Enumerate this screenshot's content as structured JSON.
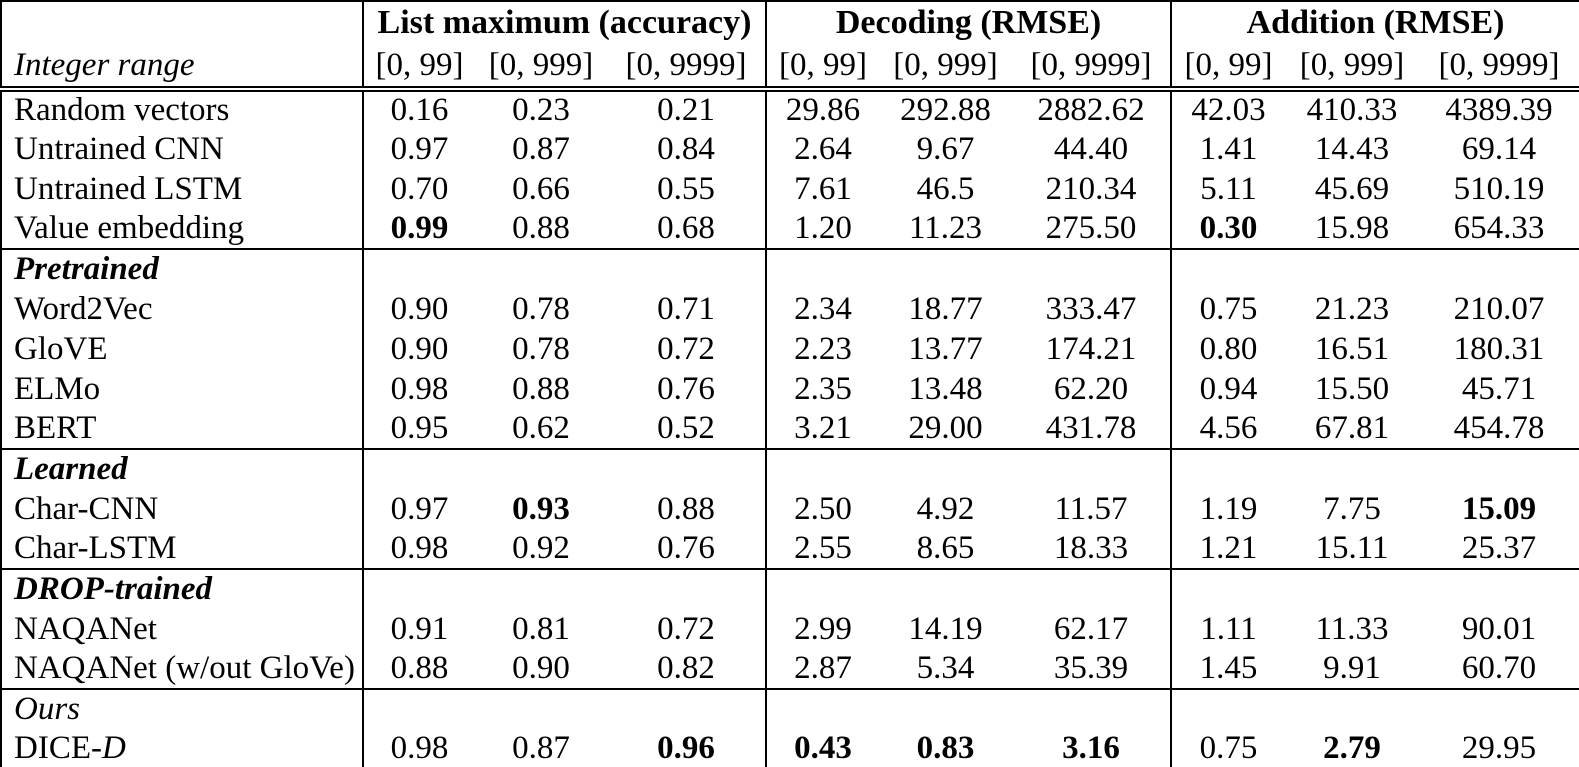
{
  "table": {
    "row_header_label": "Integer range",
    "groups": [
      {
        "title": "List maximum (accuracy)"
      },
      {
        "title": "Decoding (RMSE)"
      },
      {
        "title": "Addition (RMSE)"
      }
    ],
    "ranges": [
      "[0, 99]",
      "[0, 999]",
      "[0, 9999]"
    ],
    "rows": [
      {
        "label": "Random vectors",
        "type": "data",
        "values": [
          "0.16",
          "0.23",
          "0.21",
          "29.86",
          "292.88",
          "2882.62",
          "42.03",
          "410.33",
          "4389.39"
        ],
        "bold": []
      },
      {
        "label": "Untrained CNN",
        "type": "data",
        "values": [
          "0.97",
          "0.87",
          "0.84",
          "2.64",
          "9.67",
          "44.40",
          "1.41",
          "14.43",
          "69.14"
        ],
        "bold": []
      },
      {
        "label": "Untrained LSTM",
        "type": "data",
        "values": [
          "0.70",
          "0.66",
          "0.55",
          "7.61",
          "46.5",
          "210.34",
          "5.11",
          "45.69",
          "510.19"
        ],
        "bold": []
      },
      {
        "label": "Value embedding",
        "type": "data",
        "values": [
          "0.99",
          "0.88",
          "0.68",
          "1.20",
          "11.23",
          "275.50",
          "0.30",
          "15.98",
          "654.33"
        ],
        "bold": [
          0,
          6
        ]
      },
      {
        "label": "Pretrained",
        "type": "section",
        "label_style": "bold-italic"
      },
      {
        "label": "Word2Vec",
        "type": "data",
        "values": [
          "0.90",
          "0.78",
          "0.71",
          "2.34",
          "18.77",
          "333.47",
          "0.75",
          "21.23",
          "210.07"
        ],
        "bold": []
      },
      {
        "label": "GloVE",
        "type": "data",
        "values": [
          "0.90",
          "0.78",
          "0.72",
          "2.23",
          "13.77",
          "174.21",
          "0.80",
          "16.51",
          "180.31"
        ],
        "bold": []
      },
      {
        "label": "ELMo",
        "type": "data",
        "values": [
          "0.98",
          "0.88",
          "0.76",
          "2.35",
          "13.48",
          "62.20",
          "0.94",
          "15.50",
          "45.71"
        ],
        "bold": []
      },
      {
        "label": "BERT",
        "type": "data",
        "values": [
          "0.95",
          "0.62",
          "0.52",
          "3.21",
          "29.00",
          "431.78",
          "4.56",
          "67.81",
          "454.78"
        ],
        "bold": []
      },
      {
        "label": "Learned",
        "type": "section",
        "label_style": "bold-italic"
      },
      {
        "label": "Char-CNN",
        "type": "data",
        "values": [
          "0.97",
          "0.93",
          "0.88",
          "2.50",
          "4.92",
          "11.57",
          "1.19",
          "7.75",
          "15.09"
        ],
        "bold": [
          1,
          8
        ]
      },
      {
        "label": "Char-LSTM",
        "type": "data",
        "values": [
          "0.98",
          "0.92",
          "0.76",
          "2.55",
          "8.65",
          "18.33",
          "1.21",
          "15.11",
          "25.37"
        ],
        "bold": []
      },
      {
        "label": "DROP-trained",
        "type": "section",
        "label_style": "bold-italic"
      },
      {
        "label": "NAQANet",
        "type": "data",
        "values": [
          "0.91",
          "0.81",
          "0.72",
          "2.99",
          "14.19",
          "62.17",
          "1.11",
          "11.33",
          "90.01"
        ],
        "bold": []
      },
      {
        "label": "NAQANet (w/out GloVe)",
        "type": "data",
        "values": [
          "0.88",
          "0.90",
          "0.82",
          "2.87",
          "5.34",
          "35.39",
          "1.45",
          "9.91",
          "60.70"
        ],
        "bold": []
      },
      {
        "label": "Ours",
        "type": "section",
        "label_style": "italic"
      },
      {
        "label": "DICE-",
        "label_suffix_italic": "D",
        "type": "data",
        "values": [
          "0.98",
          "0.87",
          "0.96",
          "0.43",
          "0.83",
          "3.16",
          "0.75",
          "2.79",
          "29.95"
        ],
        "bold": [
          2,
          3,
          4,
          5,
          7
        ]
      }
    ]
  }
}
